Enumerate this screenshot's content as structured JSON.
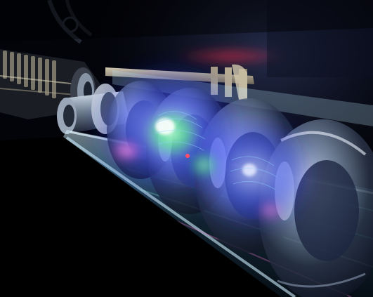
{
  "image": {
    "subject": "accelerator-cavity-render",
    "colors": {
      "background": "#05060c",
      "glow_core": "#5a6bff",
      "glow_outer": "#2233ff",
      "glow_green": "#39ff6a",
      "glow_magenta": "#ff3bd0",
      "metal_dark": "#1b2230",
      "metal_light": "#c9d6e6",
      "tube_highlight": "#9fe6ff",
      "rail_tan": "#bfb39a",
      "ambient_red": "#ff2a4a"
    },
    "cavity_cells": 4
  }
}
